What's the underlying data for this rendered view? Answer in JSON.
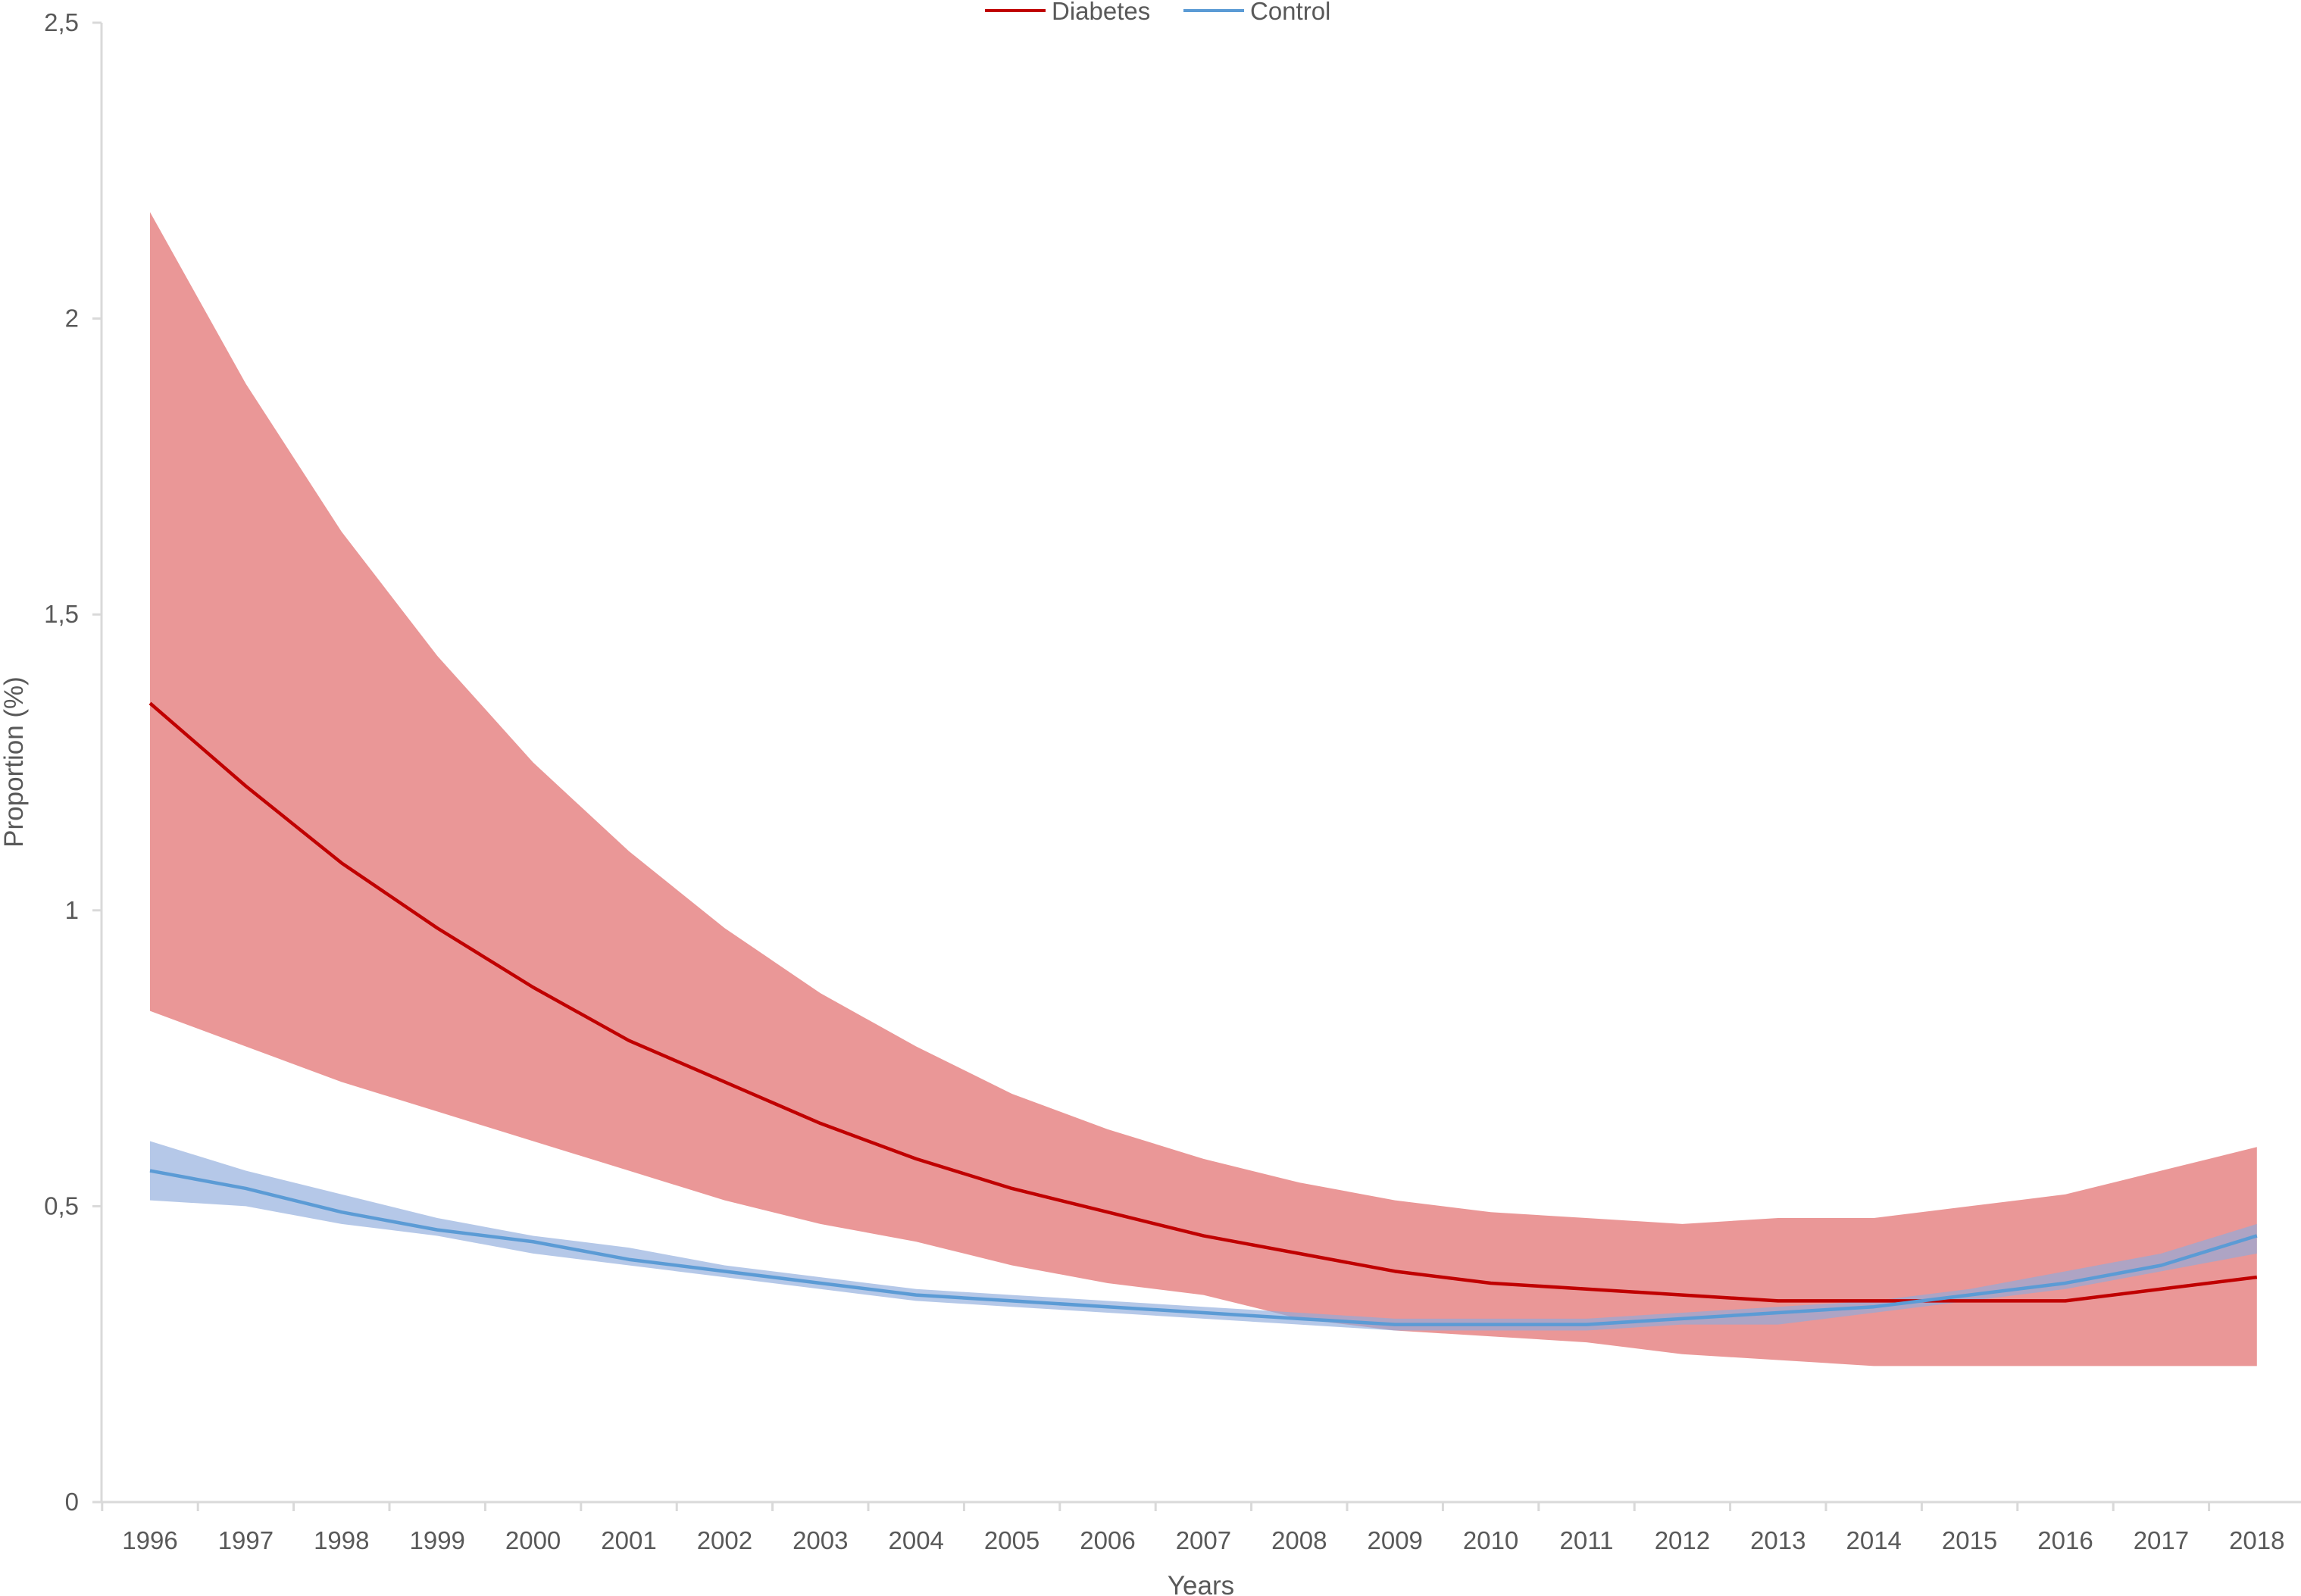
{
  "chart_data": {
    "type": "line",
    "title": "",
    "xlabel": "Years",
    "ylabel": "Proportion (%)",
    "ylim": [
      0,
      2.5
    ],
    "y_ticks": [
      0,
      0.5,
      1,
      1.5,
      2,
      2.5
    ],
    "y_tick_labels": [
      "0",
      "0,5",
      "1",
      "1,5",
      "2",
      "2,5"
    ],
    "categories": [
      "1996",
      "1997",
      "1998",
      "1999",
      "2000",
      "2001",
      "2002",
      "2003",
      "2004",
      "2005",
      "2006",
      "2007",
      "2008",
      "2009",
      "2010",
      "2011",
      "2012",
      "2013",
      "2014",
      "2015",
      "2016",
      "2017",
      "2018"
    ],
    "grid": false,
    "legend_position": "top-center",
    "series": [
      {
        "name": "Diabetes",
        "color": "#c00000",
        "band_color": "#e06666",
        "values": [
          1.35,
          1.21,
          1.08,
          0.97,
          0.87,
          0.78,
          0.71,
          0.64,
          0.58,
          0.53,
          0.49,
          0.45,
          0.42,
          0.39,
          0.37,
          0.36,
          0.35,
          0.34,
          0.34,
          0.34,
          0.34,
          0.36,
          0.38
        ],
        "upper": [
          2.18,
          1.89,
          1.64,
          1.43,
          1.25,
          1.1,
          0.97,
          0.86,
          0.77,
          0.69,
          0.63,
          0.58,
          0.54,
          0.51,
          0.49,
          0.48,
          0.47,
          0.48,
          0.48,
          0.5,
          0.52,
          0.56,
          0.6
        ],
        "lower": [
          0.83,
          0.77,
          0.71,
          0.66,
          0.61,
          0.56,
          0.51,
          0.47,
          0.44,
          0.4,
          0.37,
          0.35,
          0.31,
          0.29,
          0.28,
          0.27,
          0.25,
          0.24,
          0.23,
          0.23,
          0.23,
          0.23,
          0.23
        ]
      },
      {
        "name": "Control",
        "color": "#5b9bd5",
        "band_color": "#8eaadb",
        "values": [
          0.56,
          0.53,
          0.49,
          0.46,
          0.44,
          0.41,
          0.39,
          0.37,
          0.35,
          0.34,
          0.33,
          0.32,
          0.31,
          0.3,
          0.3,
          0.3,
          0.31,
          0.32,
          0.33,
          0.35,
          0.37,
          0.4,
          0.45
        ],
        "upper": [
          0.61,
          0.56,
          0.52,
          0.48,
          0.45,
          0.43,
          0.4,
          0.38,
          0.36,
          0.35,
          0.34,
          0.33,
          0.32,
          0.31,
          0.31,
          0.31,
          0.32,
          0.33,
          0.34,
          0.36,
          0.39,
          0.42,
          0.47
        ],
        "lower": [
          0.51,
          0.5,
          0.47,
          0.45,
          0.42,
          0.4,
          0.38,
          0.36,
          0.34,
          0.33,
          0.32,
          0.31,
          0.3,
          0.29,
          0.29,
          0.29,
          0.3,
          0.3,
          0.32,
          0.34,
          0.36,
          0.39,
          0.42
        ]
      }
    ]
  }
}
